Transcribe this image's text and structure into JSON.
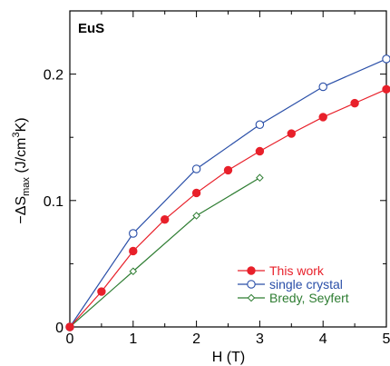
{
  "chart_data": {
    "type": "line",
    "panel_label": "EuS",
    "xlabel": "H (T)",
    "ylabel": {
      "prefix": "−ΔS",
      "subscript": "max",
      "middle": " (J/cm",
      "superscript": "3",
      "suffix": "K)"
    },
    "xlim": [
      0,
      5
    ],
    "ylim": [
      0,
      0.25
    ],
    "xticks": [
      0,
      1,
      2,
      3,
      4,
      5
    ],
    "xtick_labels": [
      "0",
      "1",
      "2",
      "3",
      "4",
      "5"
    ],
    "yticks": [
      0,
      0.1,
      0.2
    ],
    "ytick_labels": [
      "0",
      "0.1",
      "0.2"
    ],
    "grid": false,
    "legend_position": "bottom-right",
    "series": [
      {
        "name": "This work",
        "color": "#e8202a",
        "marker": "filled-circle",
        "x": [
          0,
          0.5,
          1,
          1.5,
          2,
          2.5,
          3,
          3.5,
          4,
          4.5,
          5
        ],
        "y": [
          0,
          0.028,
          0.06,
          0.085,
          0.106,
          0.124,
          0.139,
          0.153,
          0.166,
          0.177,
          0.188
        ]
      },
      {
        "name": "single crystal",
        "color": "#2a4fa8",
        "marker": "open-circle",
        "x": [
          0,
          1,
          2,
          3,
          4,
          5
        ],
        "y": [
          0,
          0.074,
          0.125,
          0.16,
          0.19,
          0.212
        ]
      },
      {
        "name": "Bredy, Seyfert",
        "color": "#2e7d32",
        "marker": "open-diamond",
        "x": [
          0,
          1,
          2,
          3
        ],
        "y": [
          0,
          0.044,
          0.088,
          0.118
        ]
      }
    ]
  }
}
